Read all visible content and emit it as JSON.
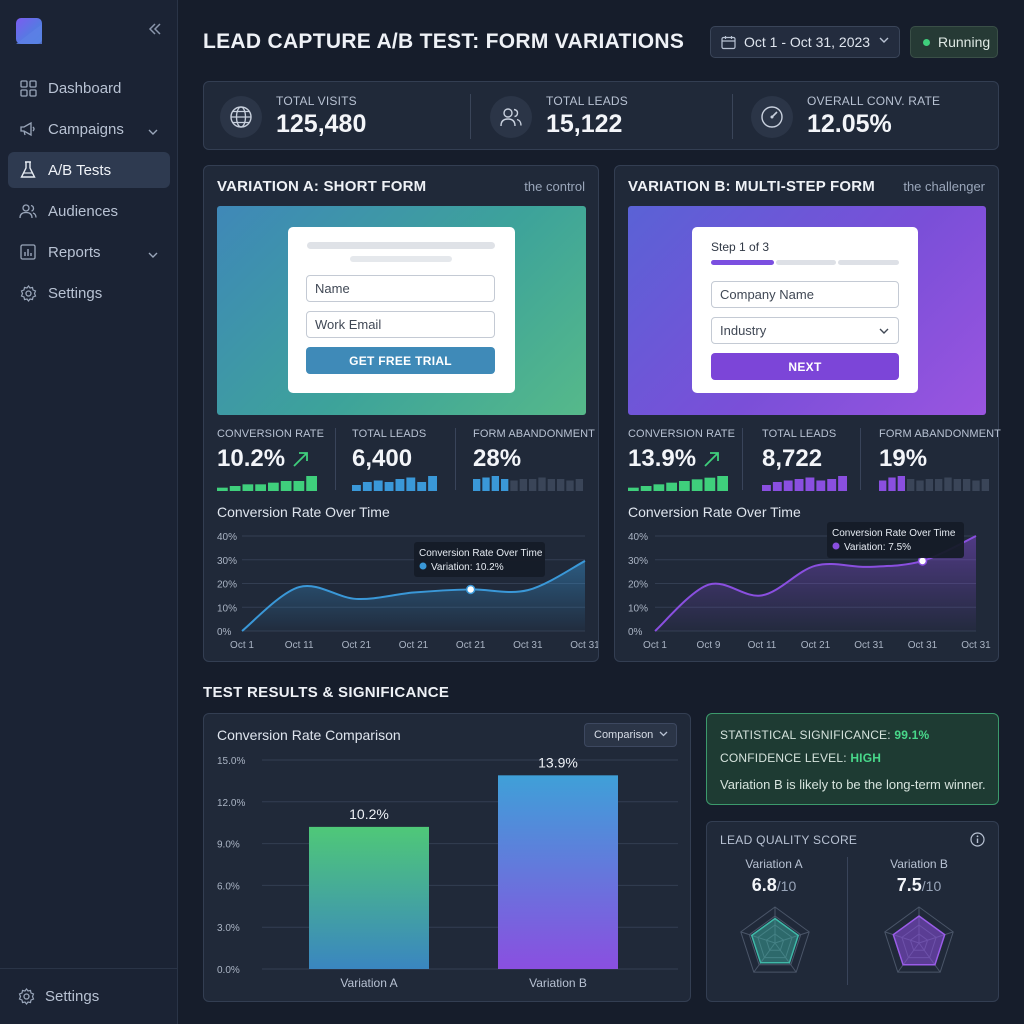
{
  "sidebar": {
    "items": [
      {
        "label": "Dashboard",
        "icon": "grid-icon"
      },
      {
        "label": "Campaigns",
        "icon": "megaphone-icon"
      },
      {
        "label": "A/B Tests",
        "icon": "flask-icon"
      },
      {
        "label": "Audiences",
        "icon": "users-icon"
      },
      {
        "label": "Reports",
        "icon": "bar-chart-icon"
      },
      {
        "label": "Settings",
        "icon": "gear-icon"
      }
    ],
    "bottom_label": "Settings"
  },
  "header": {
    "title": "LEAD CAPTURE A/B TEST: FORM VARIATIONS",
    "date_range": "Oct 1 - Oct 31, 2023",
    "status": "Running"
  },
  "stats": [
    {
      "label": "TOTAL VISITS",
      "value": "125,480"
    },
    {
      "label": "TOTAL LEADS",
      "value": "15,122"
    },
    {
      "label": "OVERALL CONV. RATE",
      "value": "12.05%"
    }
  ],
  "variation_a": {
    "title": "VARIATION A: SHORT FORM",
    "subtitle": "the control",
    "form": {
      "field1": "Name",
      "field2": "Work Email",
      "button": "GET FREE TRIAL"
    },
    "metrics": [
      {
        "label": "CONVERSION RATE",
        "value": "10.2%"
      },
      {
        "label": "TOTAL LEADS",
        "value": "6,400"
      },
      {
        "label": "FORM ABANDONMENT",
        "value": "28%"
      }
    ],
    "chart_title": "Conversion Rate Over Time",
    "tooltip": {
      "title": "Conversion Rate Over Time",
      "value": "Variation: 10.2%"
    }
  },
  "variation_b": {
    "title": "VARIATION B: MULTI-STEP FORM",
    "subtitle": "the challenger",
    "form": {
      "step": "Step 1 of 3",
      "field1": "Company Name",
      "field2": "Industry",
      "button": "NEXT"
    },
    "metrics": [
      {
        "label": "CONVERSION RATE",
        "value": "13.9%"
      },
      {
        "label": "TOTAL LEADS",
        "value": "8,722"
      },
      {
        "label": "FORM ABANDONMENT",
        "value": "19%"
      }
    ],
    "chart_title": "Conversion Rate Over Time",
    "tooltip": {
      "title": "Conversion Rate Over Time",
      "value": "Variation: 7.5%"
    }
  },
  "results": {
    "section_title": "TEST RESULTS & SIGNIFICANCE",
    "comparison_title": "Conversion Rate Comparison",
    "dropdown": "Comparison",
    "significance_label": "STATISTICAL SIGNIFICANCE:",
    "significance_value": "99.1%",
    "confidence_label": "CONFIDENCE LEVEL:",
    "confidence_value": "HIGH",
    "summary": "Variation B is likely to be the long-term winner.",
    "lead_quality": {
      "title": "LEAD QUALITY SCORE",
      "a_name": "Variation A",
      "a_score": "6.8",
      "a_max": "/10",
      "b_name": "Variation B",
      "b_score": "7.5",
      "b_max": "/10"
    }
  },
  "colors": {
    "green": "#3fcf7c",
    "blue": "#3a98d8",
    "purple": "#8a4fe0"
  },
  "chart_data": [
    {
      "type": "line",
      "name": "variation-a-trend",
      "x": [
        "Oct 1",
        "Oct 11",
        "Oct 21",
        "Oct 21",
        "Oct 21",
        "Oct 31",
        "Oct 31"
      ],
      "y": [
        0,
        18.5,
        13.5,
        16.2,
        17.5,
        17.2,
        29.5
      ],
      "yticks": [
        "0%",
        "10%",
        "20%",
        "30%",
        "40%"
      ],
      "ylim": [
        0,
        40
      ],
      "highlight_index": 4,
      "color": "#3a98d8"
    },
    {
      "type": "line",
      "name": "variation-b-trend",
      "x": [
        "Oct 1",
        "Oct 9",
        "Oct 11",
        "Oct 21",
        "Oct 31",
        "Oct 31",
        "Oct 31"
      ],
      "y": [
        0,
        19.5,
        15,
        27.5,
        27,
        29.5,
        40
      ],
      "yticks": [
        "0%",
        "10%",
        "20%",
        "30%",
        "40%"
      ],
      "ylim": [
        0,
        40
      ],
      "highlight_index": 5,
      "color": "#8a4fe0"
    },
    {
      "type": "bar",
      "name": "conversion-comparison",
      "categories": [
        "Variation A",
        "Variation B"
      ],
      "values": [
        10.2,
        13.9
      ],
      "labels": [
        "10.2%",
        "13.9%"
      ],
      "yticks": [
        "0.0%",
        "3.0%",
        "6.0%",
        "9.0%",
        "12.0%",
        "15.0%"
      ],
      "ylim": [
        0,
        15
      ]
    },
    {
      "type": "bar",
      "name": "variation-a-conversion-sparkline",
      "values": [
        2,
        3,
        4,
        4,
        5,
        6,
        6,
        9
      ]
    },
    {
      "type": "bar",
      "name": "variation-a-leads-sparkline",
      "values": [
        4,
        6,
        7,
        6,
        8,
        9,
        6,
        10
      ]
    },
    {
      "type": "bar",
      "name": "variation-a-abandonment-sparkline",
      "values": [
        8,
        9,
        10,
        8,
        7,
        8,
        8,
        9,
        8,
        8,
        7,
        8
      ]
    },
    {
      "type": "bar",
      "name": "variation-b-conversion-sparkline",
      "values": [
        2,
        3,
        4,
        5,
        6,
        7,
        8,
        9
      ]
    },
    {
      "type": "bar",
      "name": "variation-b-leads-sparkline",
      "values": [
        4,
        6,
        7,
        8,
        9,
        7,
        8,
        10
      ]
    },
    {
      "type": "bar",
      "name": "variation-b-abandonment-sparkline",
      "values": [
        7,
        9,
        10,
        8,
        7,
        8,
        8,
        9,
        8,
        8,
        7,
        8
      ]
    }
  ]
}
